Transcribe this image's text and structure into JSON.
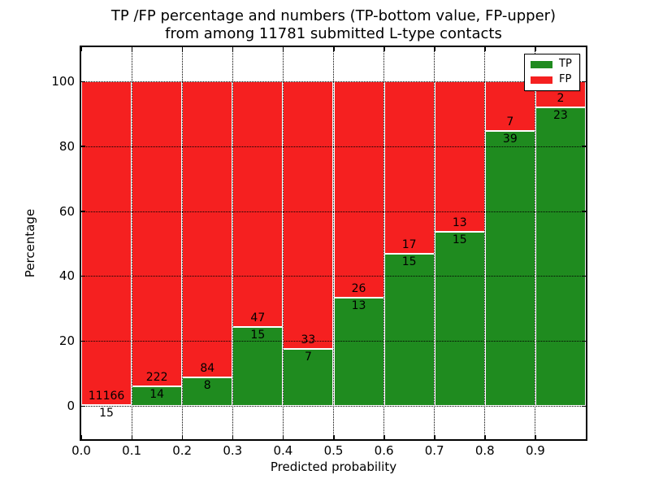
{
  "title": {
    "line1": "TP /FP percentage and numbers (TP-bottom value, FP-upper)",
    "line2": "from among 11781 submitted L-type contacts"
  },
  "axes": {
    "xlabel": "Predicted probability",
    "ylabel": "Percentage"
  },
  "legend": {
    "position": "upper right",
    "items": [
      {
        "label": "TP",
        "color": "#1f8b1f"
      },
      {
        "label": "FP",
        "color": "#f52020"
      }
    ]
  },
  "chart_data": {
    "type": "bar",
    "stacked": true,
    "normalized": "percent (each bin TP+FP = 100%)",
    "title": "TP /FP percentage and numbers (TP-bottom value, FP-upper) from among 11781 submitted L-type contacts",
    "xlabel": "Predicted probability",
    "ylabel": "Percentage",
    "total_contacts": 11781,
    "xlim": [
      0.0,
      1.0
    ],
    "ylim": [
      -10.5,
      110.5
    ],
    "x_tick_labels": [
      "0.0",
      "0.1",
      "0.2",
      "0.3",
      "0.4",
      "0.5",
      "0.6",
      "0.7",
      "0.8",
      "0.9"
    ],
    "y_ticks": [
      0,
      20,
      40,
      60,
      80,
      100
    ],
    "y_tick_labels": [
      "0",
      "20",
      "40",
      "60",
      "80",
      "100"
    ],
    "grid": "dotted, horizontal and vertical, drawn over bars",
    "bin_edges": [
      0.0,
      0.1,
      0.2,
      0.3,
      0.4,
      0.5,
      0.6,
      0.7,
      0.8,
      0.9,
      1.0
    ],
    "series": [
      {
        "name": "TP",
        "color": "#1f8b1f",
        "counts": [
          15,
          14,
          8,
          15,
          7,
          13,
          15,
          15,
          39,
          23
        ]
      },
      {
        "name": "FP",
        "color": "#f52020",
        "counts": [
          11166,
          222,
          84,
          47,
          33,
          26,
          17,
          13,
          7,
          2
        ]
      }
    ],
    "tp_percent_per_bin": [
      0.13,
      5.93,
      8.7,
      24.19,
      17.5,
      33.33,
      46.88,
      53.57,
      84.78,
      92.0
    ]
  }
}
